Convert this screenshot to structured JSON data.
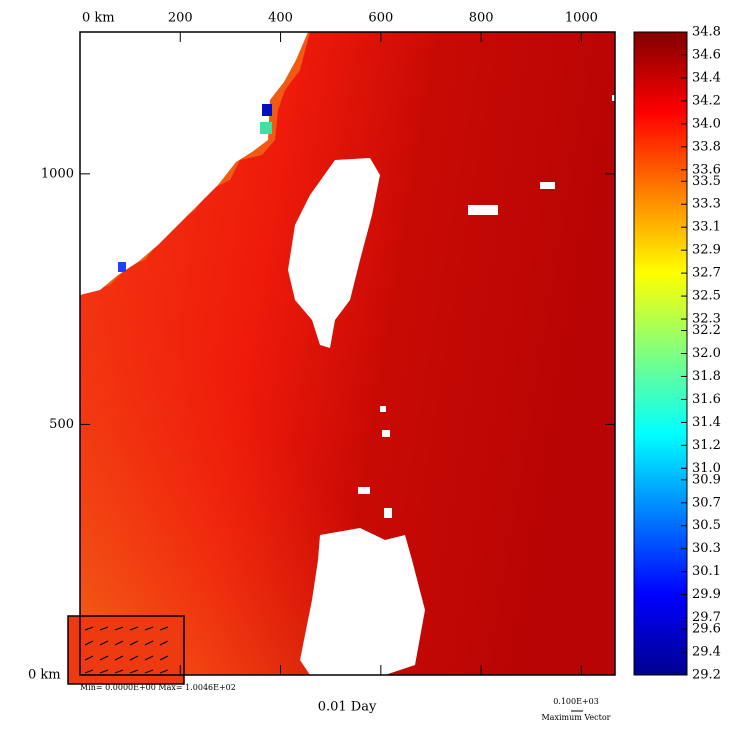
{
  "chart_data": {
    "type": "map",
    "title": "0.01 Day",
    "xlim": [
      0,
      1067
    ],
    "ylim": [
      0,
      1283
    ],
    "xticks": [
      {
        "value": 0,
        "label": "0 km"
      },
      200,
      400,
      600,
      800,
      1000
    ],
    "yticks": [
      {
        "value": 0,
        "label": "0 km"
      },
      500,
      1000
    ],
    "colorbar": {
      "lim": [
        29.2,
        34.8
      ],
      "ticks": [
        34.8,
        34.6,
        34.4,
        34.2,
        {
          "value": 34.0,
          "label": "34.0"
        },
        33.8,
        33.6,
        33.5,
        33.3,
        33.1,
        32.9,
        32.7,
        32.5,
        32.3,
        32.2,
        {
          "value": 32.0,
          "label": "32.0"
        },
        31.8,
        31.6,
        31.4,
        31.2,
        {
          "value": 31.0,
          "label": "31.0"
        },
        30.9,
        30.7,
        30.5,
        30.3,
        30.1,
        29.9,
        29.7,
        29.6,
        29.4,
        29.2
      ]
    },
    "annotation": "Min= 0.0000E+00  Max= 1.0046E+02",
    "vector_scale": "0.100E+03",
    "vector_label": "Maximum Vector"
  }
}
